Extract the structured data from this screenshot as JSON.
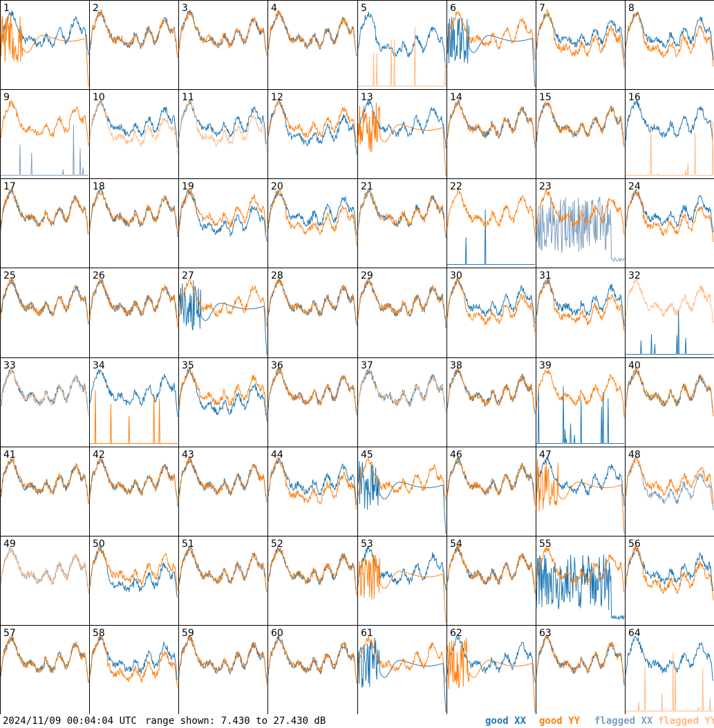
{
  "footer": {
    "timestamp": "2024/11/09 00:04:04 UTC",
    "range_text": "range shown: 7.430 to 27.430 dB"
  },
  "legend": [
    {
      "key": "good_xx",
      "label": "good XX",
      "color": "#1f77b4"
    },
    {
      "key": "good_yy",
      "label": "good YY",
      "color": "#ff7f0e"
    },
    {
      "key": "flagged_xx",
      "label": "flagged XX",
      "color": "#7f9fbf"
    },
    {
      "key": "flagged_yy",
      "label": "flagged YY",
      "color": "#ffbb88"
    }
  ],
  "chart_data": {
    "type": "line",
    "layout": "8x8 small multiples, one panel per antenna",
    "y_range_db": [
      7.43,
      27.43
    ],
    "x_axis": "frequency channel (unlabeled)",
    "panels": [
      {
        "id": 1,
        "xx": "good",
        "yy": "good",
        "xx_shape": "normal",
        "yy_shape": "hump"
      },
      {
        "id": 2,
        "xx": "good",
        "yy": "good",
        "xx_shape": "normal",
        "yy_shape": "normal"
      },
      {
        "id": 3,
        "xx": "good",
        "yy": "good",
        "xx_shape": "normal",
        "yy_shape": "normal"
      },
      {
        "id": 4,
        "xx": "good",
        "yy": "good",
        "xx_shape": "normal",
        "yy_shape": "normal"
      },
      {
        "id": 5,
        "xx": "good",
        "yy": "flagged",
        "xx_shape": "normal_low",
        "yy_shape": "dead"
      },
      {
        "id": 6,
        "xx": "good",
        "yy": "good",
        "xx_shape": "hump",
        "yy_shape": "normal"
      },
      {
        "id": 7,
        "xx": "good",
        "yy": "good",
        "xx_shape": "normal",
        "yy_shape": "normal_low"
      },
      {
        "id": 8,
        "xx": "good",
        "yy": "good",
        "xx_shape": "normal",
        "yy_shape": "normal_low"
      },
      {
        "id": 9,
        "xx": "flagged",
        "yy": "good",
        "xx_shape": "dead",
        "yy_shape": "normal"
      },
      {
        "id": 10,
        "xx": "good",
        "yy": "flagged",
        "xx_shape": "normal",
        "yy_shape": "normal_low"
      },
      {
        "id": 11,
        "xx": "good",
        "yy": "flagged",
        "xx_shape": "normal",
        "yy_shape": "normal_low"
      },
      {
        "id": 12,
        "xx": "good",
        "yy": "good",
        "xx_shape": "normal_low",
        "yy_shape": "normal"
      },
      {
        "id": 13,
        "xx": "good",
        "yy": "good",
        "xx_shape": "normal",
        "yy_shape": "hump"
      },
      {
        "id": 14,
        "xx": "good",
        "yy": "good",
        "xx_shape": "normal",
        "yy_shape": "normal"
      },
      {
        "id": 15,
        "xx": "good",
        "yy": "good",
        "xx_shape": "normal",
        "yy_shape": "normal"
      },
      {
        "id": 16,
        "xx": "good",
        "yy": "flagged",
        "xx_shape": "normal",
        "yy_shape": "dead"
      },
      {
        "id": 17,
        "xx": "good",
        "yy": "good",
        "xx_shape": "normal",
        "yy_shape": "normal"
      },
      {
        "id": 18,
        "xx": "good",
        "yy": "good",
        "xx_shape": "normal",
        "yy_shape": "normal"
      },
      {
        "id": 19,
        "xx": "good",
        "yy": "good",
        "xx_shape": "normal_low",
        "yy_shape": "normal"
      },
      {
        "id": 20,
        "xx": "good",
        "yy": "good",
        "xx_shape": "normal",
        "yy_shape": "normal_low"
      },
      {
        "id": 21,
        "xx": "good",
        "yy": "good",
        "xx_shape": "normal",
        "yy_shape": "normal"
      },
      {
        "id": 22,
        "xx": "good",
        "yy": "good",
        "xx_shape": "dead",
        "yy_shape": "normal"
      },
      {
        "id": 23,
        "xx": "flagged",
        "yy": "good",
        "xx_shape": "noisy",
        "yy_shape": "normal"
      },
      {
        "id": 24,
        "xx": "good",
        "yy": "good",
        "xx_shape": "normal",
        "yy_shape": "normal_low"
      },
      {
        "id": 25,
        "xx": "good",
        "yy": "good",
        "xx_shape": "normal",
        "yy_shape": "normal"
      },
      {
        "id": 26,
        "xx": "good",
        "yy": "good",
        "xx_shape": "normal",
        "yy_shape": "normal"
      },
      {
        "id": 27,
        "xx": "good",
        "yy": "good",
        "xx_shape": "hump",
        "yy_shape": "normal"
      },
      {
        "id": 28,
        "xx": "good",
        "yy": "good",
        "xx_shape": "normal",
        "yy_shape": "normal"
      },
      {
        "id": 29,
        "xx": "good",
        "yy": "good",
        "xx_shape": "normal",
        "yy_shape": "normal"
      },
      {
        "id": 30,
        "xx": "good",
        "yy": "good",
        "xx_shape": "normal",
        "yy_shape": "normal_low"
      },
      {
        "id": 31,
        "xx": "good",
        "yy": "good",
        "xx_shape": "normal",
        "yy_shape": "normal_low"
      },
      {
        "id": 32,
        "xx": "good",
        "yy": "flagged",
        "xx_shape": "dead",
        "yy_shape": "normal"
      },
      {
        "id": 33,
        "xx": "good",
        "yy": "flagged",
        "xx_shape": "normal",
        "yy_shape": "normal"
      },
      {
        "id": 34,
        "xx": "good",
        "yy": "good",
        "xx_shape": "normal",
        "yy_shape": "dead"
      },
      {
        "id": 35,
        "xx": "good",
        "yy": "good",
        "xx_shape": "normal_low",
        "yy_shape": "normal"
      },
      {
        "id": 36,
        "xx": "good",
        "yy": "good",
        "xx_shape": "normal",
        "yy_shape": "normal"
      },
      {
        "id": 37,
        "xx": "good",
        "yy": "flagged",
        "xx_shape": "normal",
        "yy_shape": "normal"
      },
      {
        "id": 38,
        "xx": "good",
        "yy": "good",
        "xx_shape": "normal",
        "yy_shape": "normal"
      },
      {
        "id": 39,
        "xx": "good",
        "yy": "good",
        "xx_shape": "dead",
        "yy_shape": "normal"
      },
      {
        "id": 40,
        "xx": "good",
        "yy": "good",
        "xx_shape": "normal",
        "yy_shape": "normal"
      },
      {
        "id": 41,
        "xx": "good",
        "yy": "good",
        "xx_shape": "normal",
        "yy_shape": "normal"
      },
      {
        "id": 42,
        "xx": "good",
        "yy": "good",
        "xx_shape": "normal",
        "yy_shape": "normal"
      },
      {
        "id": 43,
        "xx": "good",
        "yy": "good",
        "xx_shape": "normal",
        "yy_shape": "normal"
      },
      {
        "id": 44,
        "xx": "good",
        "yy": "good",
        "xx_shape": "normal",
        "yy_shape": "normal_low"
      },
      {
        "id": 45,
        "xx": "good",
        "yy": "good",
        "xx_shape": "hump",
        "yy_shape": "normal"
      },
      {
        "id": 46,
        "xx": "good",
        "yy": "good",
        "xx_shape": "normal",
        "yy_shape": "normal"
      },
      {
        "id": 47,
        "xx": "good",
        "yy": "good",
        "xx_shape": "normal",
        "yy_shape": "hump"
      },
      {
        "id": 48,
        "xx": "flagged",
        "yy": "good",
        "xx_shape": "normal_low",
        "yy_shape": "normal"
      },
      {
        "id": 49,
        "xx": "flagged",
        "yy": "flagged",
        "xx_shape": "normal",
        "yy_shape": "normal"
      },
      {
        "id": 50,
        "xx": "good",
        "yy": "good",
        "xx_shape": "normal_low",
        "yy_shape": "normal"
      },
      {
        "id": 51,
        "xx": "good",
        "yy": "good",
        "xx_shape": "normal",
        "yy_shape": "normal"
      },
      {
        "id": 52,
        "xx": "good",
        "yy": "good",
        "xx_shape": "normal",
        "yy_shape": "normal"
      },
      {
        "id": 53,
        "xx": "good",
        "yy": "good",
        "xx_shape": "normal",
        "yy_shape": "hump"
      },
      {
        "id": 54,
        "xx": "good",
        "yy": "good",
        "xx_shape": "normal",
        "yy_shape": "normal"
      },
      {
        "id": 55,
        "xx": "good",
        "yy": "good",
        "xx_shape": "noisy",
        "yy_shape": "normal"
      },
      {
        "id": 56,
        "xx": "good",
        "yy": "good",
        "xx_shape": "normal",
        "yy_shape": "normal_low"
      },
      {
        "id": 57,
        "xx": "good",
        "yy": "good",
        "xx_shape": "normal",
        "yy_shape": "normal"
      },
      {
        "id": 58,
        "xx": "good",
        "yy": "good",
        "xx_shape": "normal",
        "yy_shape": "normal_low"
      },
      {
        "id": 59,
        "xx": "good",
        "yy": "good",
        "xx_shape": "normal",
        "yy_shape": "normal"
      },
      {
        "id": 60,
        "xx": "good",
        "yy": "good",
        "xx_shape": "normal",
        "yy_shape": "normal"
      },
      {
        "id": 61,
        "xx": "good",
        "yy": "good",
        "xx_shape": "hump",
        "yy_shape": "normal"
      },
      {
        "id": 62,
        "xx": "good",
        "yy": "good",
        "xx_shape": "normal",
        "yy_shape": "hump"
      },
      {
        "id": 63,
        "xx": "good",
        "yy": "good",
        "xx_shape": "normal",
        "yy_shape": "normal"
      },
      {
        "id": 64,
        "xx": "good",
        "yy": "flagged",
        "xx_shape": "normal",
        "yy_shape": "dead"
      }
    ]
  }
}
